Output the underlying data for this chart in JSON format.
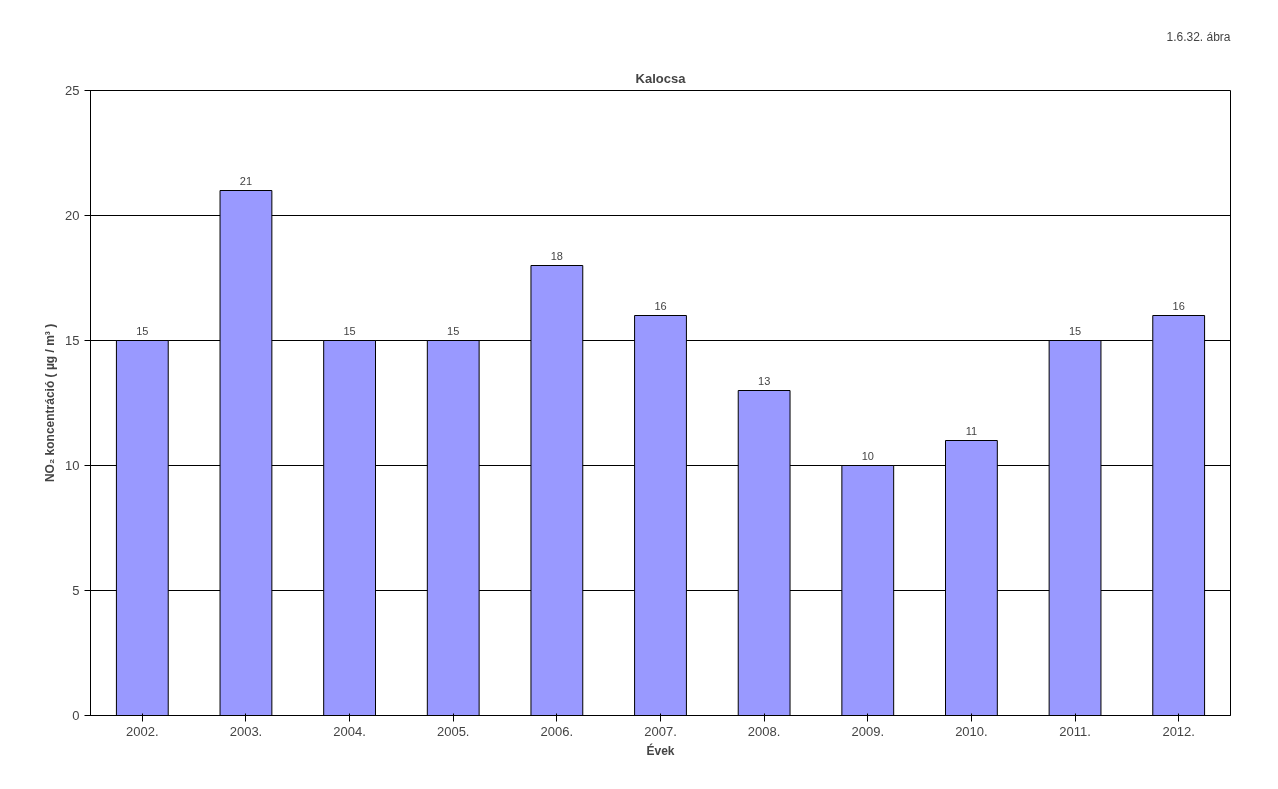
{
  "chart_data": {
    "type": "bar",
    "title": "Kalocsa",
    "xlabel": "Évek",
    "ylabel": "NO₂ koncentráció ( µg / m³ )",
    "categories": [
      "2002.",
      "2003.",
      "2004.",
      "2005.",
      "2006.",
      "2007.",
      "2008.",
      "2009.",
      "2010.",
      "2011.",
      "2012."
    ],
    "values": [
      15,
      21,
      15,
      15,
      18,
      16,
      13,
      10,
      11,
      15,
      16
    ],
    "color": "#9999ff",
    "ylim": [
      0,
      25
    ],
    "yticks": [
      0,
      5,
      10,
      15,
      20,
      25
    ],
    "grid": "y",
    "data_labels": true,
    "annotations": [
      "1.6.32. ábra"
    ]
  }
}
